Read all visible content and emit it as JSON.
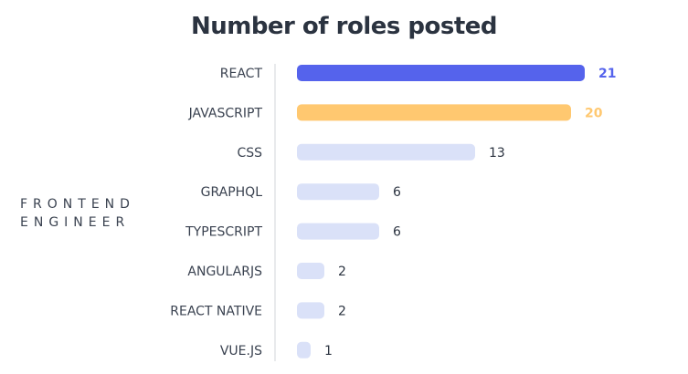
{
  "chart_data": {
    "type": "bar",
    "orientation": "horizontal",
    "title": "Number of roles posted",
    "group_label": [
      "FRONTEND",
      "ENGINEER"
    ],
    "categories": [
      "REACT",
      "JAVASCRIPT",
      "CSS",
      "GRAPHQL",
      "TYPESCRIPT",
      "ANGULARJS",
      "REACT NATIVE",
      "VUE.JS"
    ],
    "values": [
      21,
      20,
      13,
      6,
      6,
      2,
      2,
      1
    ],
    "colors": [
      "#5563ec",
      "#ffc870",
      "#dae1f8",
      "#dae1f8",
      "#dae1f8",
      "#dae1f8",
      "#dae1f8",
      "#dae1f8"
    ],
    "label_colors": [
      "#5563ec",
      "#ffc870",
      "#2b3340",
      "#2b3340",
      "#2b3340",
      "#2b3340",
      "#2b3340",
      "#2b3340"
    ],
    "xlim": [
      0,
      21
    ],
    "grid": false,
    "legend": "none"
  }
}
